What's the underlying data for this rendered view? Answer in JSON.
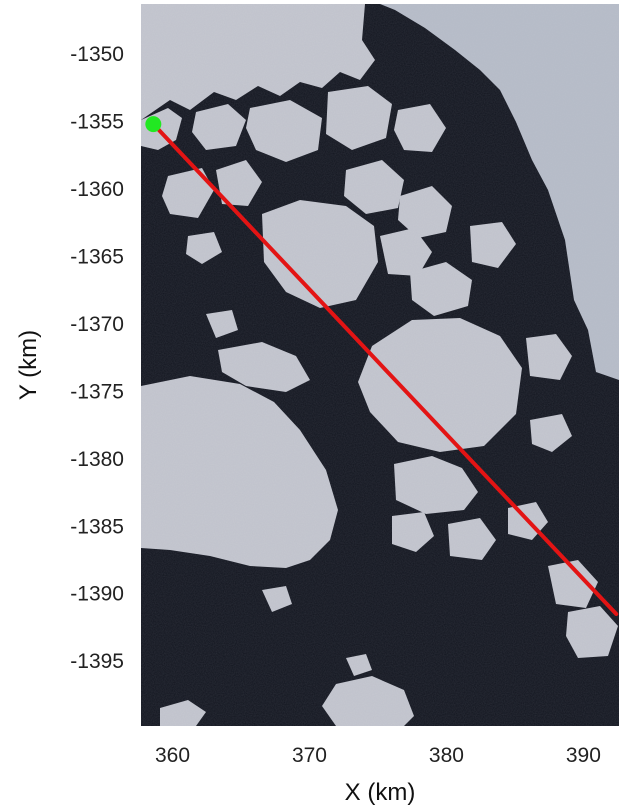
{
  "chart_data": {
    "type": "scatter",
    "background": "satellite image of sea ice floes (light grey-blue) in dark open water; large continuous ice sheet on the right",
    "xlabel": "X (km)",
    "ylabel": "Y (km)",
    "xlim": [
      357.7,
      392.6
    ],
    "ylim": [
      -1399.8,
      -1346.3
    ],
    "x_ticks": [
      360,
      370,
      380,
      390
    ],
    "x_tick_labels": [
      "360",
      "370",
      "380",
      "390"
    ],
    "y_ticks": [
      -1350,
      -1355,
      -1360,
      -1365,
      -1370,
      -1375,
      -1380,
      -1385,
      -1390,
      -1395
    ],
    "y_tick_labels": [
      "-1350",
      "-1355",
      "-1360",
      "-1365",
      "-1370",
      "-1375",
      "-1380",
      "-1385",
      "-1390",
      "-1395"
    ],
    "grid": false,
    "series": [
      {
        "type": "line",
        "color": "#e31414",
        "x": [
          358.6,
          392.4
        ],
        "y": [
          -1355.2,
          -1391.5
        ]
      },
      {
        "type": "point",
        "color": "#22e822",
        "x": [
          358.6
        ],
        "y": [
          -1355.2
        ]
      }
    ]
  },
  "colors": {
    "water": "#12151f",
    "ice": "#c6c8d1",
    "ice_sheet": "#b9bfcb",
    "track": "#e31414",
    "start_point": "#22e822"
  }
}
